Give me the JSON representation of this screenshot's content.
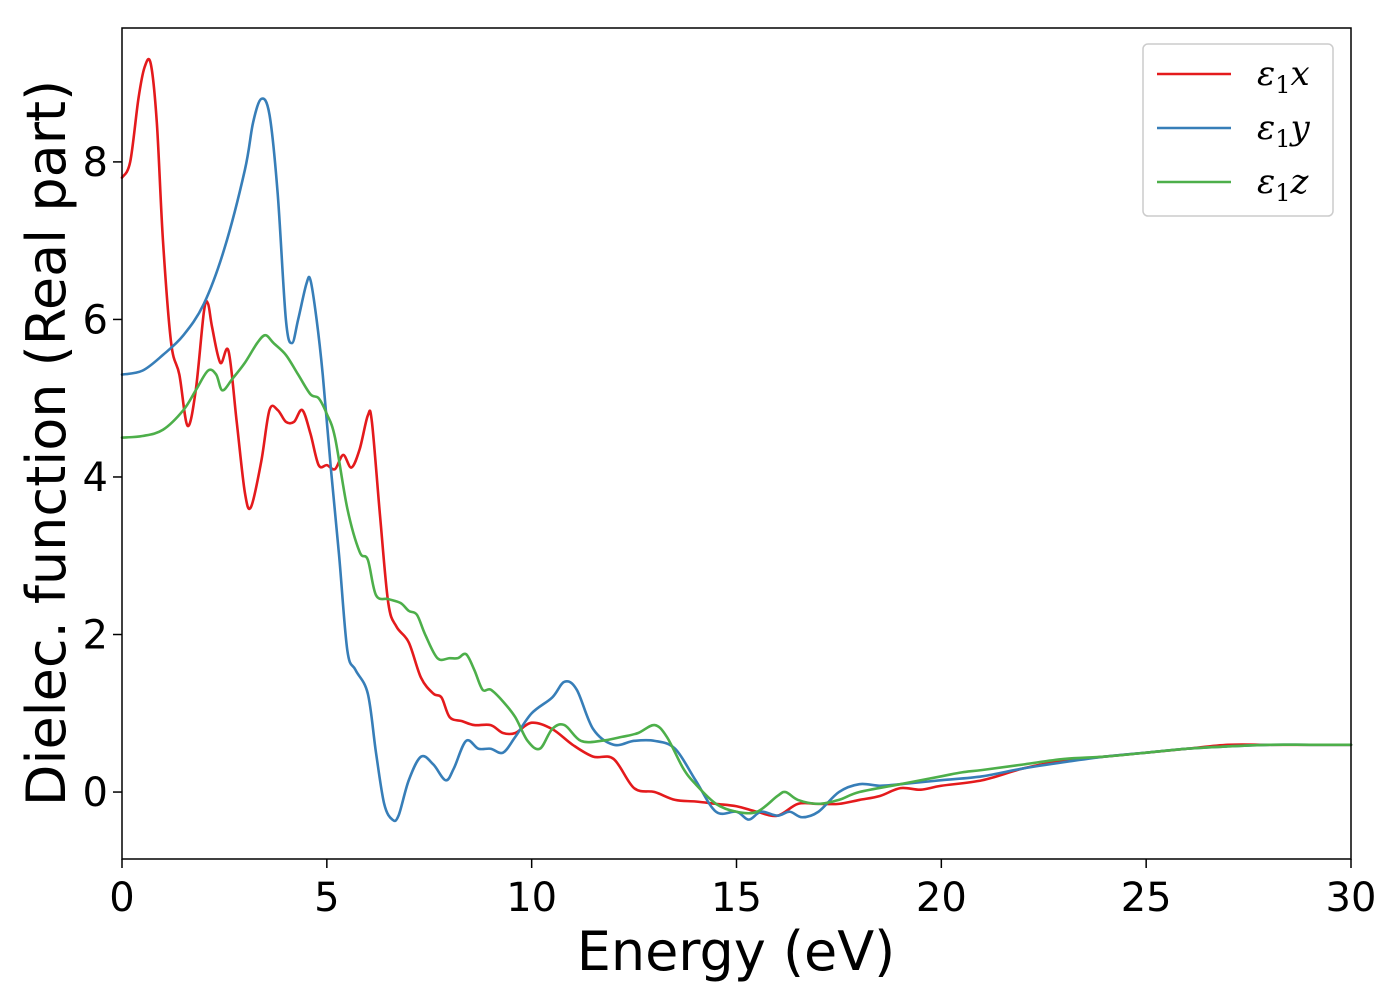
{
  "chart_data": {
    "type": "line",
    "xlabel": "Energy (eV)",
    "ylabel": "Dielec. function (Real part)",
    "xlim": [
      0,
      30
    ],
    "ylim": [
      -0.85,
      9.7
    ],
    "xticks": [
      0,
      5,
      10,
      15,
      20,
      25,
      30
    ],
    "yticks": [
      0,
      2,
      4,
      6,
      8
    ],
    "grid": false,
    "legend_position": "top-right",
    "series": [
      {
        "name": "ε₁x",
        "legend_base": "ε",
        "legend_sub": "1",
        "legend_var": "x",
        "color": "#e41a1c",
        "x": [
          0,
          0.2,
          0.4,
          0.55,
          0.7,
          0.85,
          1.0,
          1.2,
          1.4,
          1.6,
          1.8,
          2.0,
          2.1,
          2.2,
          2.4,
          2.6,
          2.8,
          3.0,
          3.15,
          3.4,
          3.6,
          3.8,
          4.0,
          4.2,
          4.4,
          4.6,
          4.8,
          5.0,
          5.2,
          5.4,
          5.6,
          5.8,
          6.0,
          6.1,
          6.3,
          6.5,
          6.7,
          7.0,
          7.3,
          7.6,
          7.8,
          8.0,
          8.3,
          8.6,
          9.0,
          9.3,
          9.6,
          10.0,
          10.5,
          11.0,
          11.5,
          12.0,
          12.5,
          13.0,
          13.5,
          14.0,
          14.5,
          15.0,
          15.5,
          16.0,
          16.5,
          17.0,
          17.5,
          18.0,
          18.5,
          19.0,
          19.5,
          20.0,
          21.0,
          22.0,
          23.0,
          24.0,
          25.0,
          26.0,
          27.0,
          28.0,
          29.0,
          30.0
        ],
        "y": [
          7.8,
          8.0,
          8.8,
          9.2,
          9.25,
          8.5,
          7.0,
          5.7,
          5.3,
          4.65,
          5.1,
          6.1,
          6.2,
          5.9,
          5.45,
          5.6,
          4.7,
          3.8,
          3.62,
          4.2,
          4.85,
          4.85,
          4.7,
          4.7,
          4.85,
          4.55,
          4.15,
          4.15,
          4.1,
          4.28,
          4.12,
          4.35,
          4.78,
          4.7,
          3.5,
          2.4,
          2.1,
          1.9,
          1.45,
          1.25,
          1.2,
          0.95,
          0.9,
          0.85,
          0.85,
          0.75,
          0.75,
          0.88,
          0.8,
          0.6,
          0.45,
          0.42,
          0.05,
          0.0,
          -0.1,
          -0.12,
          -0.15,
          -0.18,
          -0.25,
          -0.3,
          -0.15,
          -0.15,
          -0.15,
          -0.1,
          -0.05,
          0.05,
          0.03,
          0.08,
          0.15,
          0.3,
          0.4,
          0.45,
          0.5,
          0.55,
          0.6,
          0.6,
          0.6,
          0.6
        ]
      },
      {
        "name": "ε₁y",
        "legend_base": "ε",
        "legend_sub": "1",
        "legend_var": "y",
        "color": "#377eb8",
        "x": [
          0,
          0.5,
          1.0,
          1.5,
          2.0,
          2.5,
          3.0,
          3.2,
          3.4,
          3.6,
          3.8,
          4.0,
          4.15,
          4.3,
          4.5,
          4.6,
          4.75,
          4.9,
          5.1,
          5.3,
          5.5,
          5.7,
          6.0,
          6.2,
          6.4,
          6.6,
          6.75,
          7.0,
          7.3,
          7.6,
          7.9,
          8.1,
          8.4,
          8.7,
          9.0,
          9.3,
          9.6,
          10.0,
          10.5,
          10.8,
          11.1,
          11.5,
          12.0,
          12.5,
          13.0,
          13.5,
          14.0,
          14.5,
          15.0,
          15.3,
          15.6,
          16.0,
          16.3,
          16.6,
          17.0,
          17.5,
          18.0,
          18.5,
          19.0,
          20.0,
          21.0,
          22.0,
          23.0,
          24.0,
          25.0,
          26.0,
          27.0,
          28.0,
          29.0,
          30.0
        ],
        "y": [
          5.3,
          5.35,
          5.55,
          5.8,
          6.2,
          6.9,
          7.9,
          8.5,
          8.8,
          8.6,
          7.6,
          6.0,
          5.7,
          6.0,
          6.45,
          6.5,
          6.0,
          5.3,
          4.1,
          3.0,
          1.8,
          1.55,
          1.25,
          0.5,
          -0.15,
          -0.35,
          -0.3,
          0.15,
          0.45,
          0.35,
          0.15,
          0.3,
          0.65,
          0.55,
          0.55,
          0.5,
          0.7,
          1.0,
          1.2,
          1.4,
          1.3,
          0.8,
          0.6,
          0.65,
          0.65,
          0.55,
          0.15,
          -0.25,
          -0.25,
          -0.35,
          -0.25,
          -0.3,
          -0.25,
          -0.32,
          -0.25,
          0.0,
          0.1,
          0.08,
          0.1,
          0.15,
          0.2,
          0.3,
          0.38,
          0.45,
          0.5,
          0.55,
          0.58,
          0.6,
          0.6,
          0.6
        ]
      },
      {
        "name": "ε₁z",
        "legend_base": "ε",
        "legend_sub": "1",
        "legend_var": "z",
        "color": "#4daf4a",
        "x": [
          0,
          0.5,
          1.0,
          1.5,
          1.8,
          2.1,
          2.3,
          2.45,
          2.7,
          3.0,
          3.3,
          3.5,
          3.7,
          4.0,
          4.3,
          4.6,
          4.8,
          5.0,
          5.2,
          5.5,
          5.8,
          6.0,
          6.2,
          6.5,
          6.8,
          7.0,
          7.2,
          7.4,
          7.7,
          8.0,
          8.2,
          8.4,
          8.6,
          8.8,
          9.0,
          9.3,
          9.6,
          9.9,
          10.2,
          10.5,
          10.8,
          11.2,
          11.7,
          12.2,
          12.6,
          13.0,
          13.3,
          13.7,
          14.0,
          14.5,
          15.0,
          15.5,
          16.0,
          16.2,
          16.5,
          17.0,
          17.5,
          18.0,
          19.0,
          20.0,
          20.5,
          21.0,
          22.0,
          23.0,
          24.0,
          25.0,
          26.0,
          27.0,
          28.0,
          29.0,
          30.0
        ],
        "y": [
          4.5,
          4.52,
          4.6,
          4.85,
          5.1,
          5.35,
          5.3,
          5.1,
          5.25,
          5.45,
          5.7,
          5.8,
          5.7,
          5.55,
          5.3,
          5.05,
          5.0,
          4.8,
          4.5,
          3.6,
          3.05,
          2.95,
          2.5,
          2.45,
          2.4,
          2.3,
          2.25,
          2.0,
          1.7,
          1.7,
          1.7,
          1.75,
          1.55,
          1.3,
          1.3,
          1.15,
          0.95,
          0.65,
          0.55,
          0.8,
          0.85,
          0.65,
          0.65,
          0.7,
          0.75,
          0.85,
          0.7,
          0.3,
          0.1,
          -0.15,
          -0.25,
          -0.25,
          -0.05,
          0.0,
          -0.1,
          -0.15,
          -0.1,
          0.0,
          0.1,
          0.2,
          0.25,
          0.28,
          0.35,
          0.42,
          0.45,
          0.5,
          0.55,
          0.58,
          0.6,
          0.6,
          0.6
        ]
      }
    ]
  }
}
